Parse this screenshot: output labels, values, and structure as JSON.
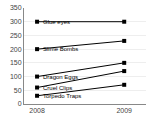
{
  "chart_data": {
    "type": "line",
    "x": [
      2008,
      2009
    ],
    "series": [
      {
        "color": "#000000",
        "values": [
          300,
          300
        ]
      },
      {
        "color": "#000000",
        "values": [
          200,
          230
        ]
      },
      {
        "color": "#000000",
        "values": [
          100,
          150
        ]
      },
      {
        "color": "#000000",
        "values": [
          60,
          120
        ]
      },
      {
        "color": "#000000",
        "values": [
          30,
          70
        ]
      }
    ],
    "annotations": [
      {
        "text": "Glue eyes",
        "x": 2008,
        "y": 300
      },
      {
        "text": "Slime Bombs",
        "x": 2008,
        "y": 200
      },
      {
        "text": "Dragon Eggs",
        "x": 2008,
        "y": 100
      },
      {
        "text": "Cruel Clips",
        "x": 2008,
        "y": 60
      },
      {
        "text": "Torpedo Traps",
        "x": 2008,
        "y": 30
      }
    ],
    "xlim": [
      2007.85,
      2009.25
    ],
    "xticks": [
      2008,
      2009
    ],
    "ylim": [
      0,
      350
    ],
    "yticks": [
      0,
      50,
      100,
      150,
      200,
      250,
      300,
      350
    ],
    "marker": "square",
    "line_style": "solid",
    "grid": true
  }
}
